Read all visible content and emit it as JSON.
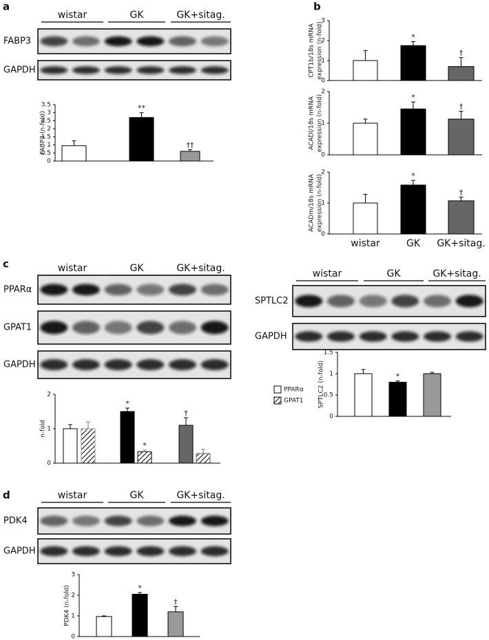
{
  "panels": [
    {
      "letter": "a",
      "groups": [
        "wistar",
        "GK",
        "GK+sitag."
      ],
      "blots": [
        "FABP3",
        "GAPDH"
      ]
    },
    {
      "letter": "b"
    },
    {
      "letter": "c",
      "groups": [
        "wistar",
        "GK",
        "GK+sitag."
      ],
      "blots": [
        "PPARα",
        "GPAT1",
        "GAPDH"
      ]
    },
    {
      "groups": [
        "wistar",
        "GK",
        "GK+sitag."
      ],
      "blots": [
        "SPTLC2",
        "GAPDH"
      ]
    },
    {
      "letter": "d",
      "groups": [
        "wistar",
        "GK",
        "GK+sitag."
      ],
      "blots": [
        "PDK4",
        "GAPDH"
      ]
    }
  ],
  "chart_data": [
    {
      "type": "bar",
      "ylabel": [
        "FABP3 (n-fold)"
      ],
      "categories": [
        null,
        null,
        null
      ],
      "values": [
        0.95,
        2.7,
        0.6
      ],
      "errors": [
        0.3,
        0.3,
        0.1
      ],
      "colors": [
        "#ffffff",
        "#000000",
        "#999999"
      ],
      "annotations": [
        null,
        "**",
        "††"
      ],
      "ylim": [
        0,
        3.5
      ],
      "yticks": [
        0,
        0.5,
        1,
        1.5,
        2,
        2.5,
        3,
        3.5
      ]
    },
    {
      "type": "bar",
      "ylabel": [
        "CPT1b/18s mRNA",
        "expression (n-fold)"
      ],
      "categories": [
        null,
        null,
        null
      ],
      "values": [
        1,
        1.75,
        0.7
      ],
      "errors": [
        0.5,
        0.2,
        0.45
      ],
      "colors": [
        "#ffffff",
        "#000000",
        "#666666"
      ],
      "annotations": [
        null,
        "*",
        "†"
      ],
      "ylim": [
        0,
        3
      ],
      "yticks": [
        0,
        1,
        2,
        3
      ]
    },
    {
      "type": "bar",
      "ylabel": [
        "ACADl/18s mRNA",
        "expression (n-fold)"
      ],
      "categories": [
        null,
        null,
        null
      ],
      "values": [
        1,
        1.45,
        1.13
      ],
      "errors": [
        0.13,
        0.22,
        0.25
      ],
      "colors": [
        "#ffffff",
        "#000000",
        "#666666"
      ],
      "annotations": [
        null,
        "*",
        "†"
      ],
      "ylim": [
        0,
        2
      ],
      "yticks": [
        0,
        1,
        2
      ]
    },
    {
      "type": "bar",
      "ylabel": [
        "ACADm/18s mRNA",
        "expression (n-fold)"
      ],
      "categories": [
        "wistar",
        "GK",
        "GK+sitag."
      ],
      "values": [
        1,
        1.58,
        1.07
      ],
      "errors": [
        0.28,
        0.15,
        0.12
      ],
      "colors": [
        "#ffffff",
        "#000000",
        "#666666"
      ],
      "annotations": [
        null,
        "*",
        "†"
      ],
      "ylim": [
        0,
        2
      ],
      "yticks": [
        0,
        1,
        2
      ]
    },
    {
      "type": "grouped_bar",
      "ylabel": [
        "n-fold"
      ],
      "categories": [
        null,
        null,
        null
      ],
      "ylim": [
        0,
        2
      ],
      "yticks": [
        0,
        1,
        2
      ],
      "series": [
        {
          "name": "PPARα",
          "values": [
            1,
            1.5,
            1.1
          ],
          "errors": [
            0.12,
            0.1,
            0.22
          ],
          "colors": [
            "#ffffff",
            "#000000",
            "#666666"
          ],
          "annotations": [
            null,
            "*",
            "†"
          ]
        },
        {
          "name": "GPAT1",
          "hatched": true,
          "values": [
            1,
            0.33,
            0.28
          ],
          "errors": [
            0.2,
            0.05,
            0.12
          ],
          "colors": [
            "#ffffff",
            "#000000",
            "#666666"
          ],
          "annotations": [
            null,
            "*",
            null
          ]
        }
      ],
      "legend": "upper right"
    },
    {
      "type": "bar",
      "ylabel": [
        "SPTLC2 (n-fold)"
      ],
      "categories": [
        null,
        null,
        null
      ],
      "values": [
        1,
        0.8,
        1.0
      ],
      "errors": [
        0.1,
        0.03,
        0.03
      ],
      "colors": [
        "#ffffff",
        "#000000",
        "#999999"
      ],
      "annotations": [
        null,
        "*",
        null
      ],
      "ylim": [
        0,
        1.5
      ],
      "yticks": [
        0,
        0.5,
        1,
        1.5
      ]
    },
    {
      "type": "bar",
      "ylabel": [
        "PDK4 (n-fold)"
      ],
      "categories": [
        null,
        null,
        null
      ],
      "values": [
        0.97,
        2.05,
        1.2
      ],
      "errors": [
        0.03,
        0.08,
        0.25
      ],
      "colors": [
        "#ffffff",
        "#000000",
        "#999999"
      ],
      "annotations": [
        null,
        "*",
        "†"
      ],
      "ylim": [
        0,
        3
      ],
      "yticks": [
        0,
        1,
        2,
        3
      ]
    }
  ]
}
